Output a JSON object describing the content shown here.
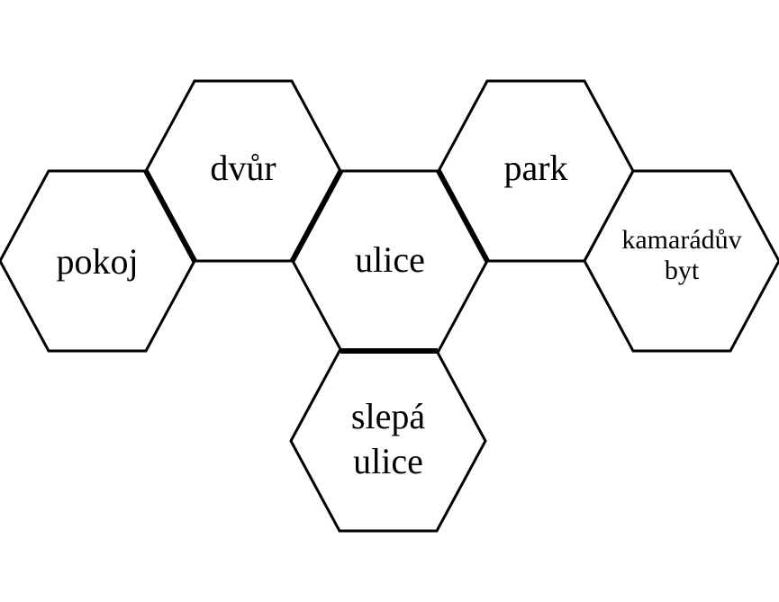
{
  "diagram": {
    "rooms": {
      "pokoj": {
        "lines": [
          "pokoj"
        ]
      },
      "dvur": {
        "lines": [
          "dvůr"
        ]
      },
      "ulice": {
        "lines": [
          "ulice"
        ]
      },
      "park": {
        "lines": [
          "park"
        ]
      },
      "kamaraduv_byt": {
        "lines": [
          "kamarádův",
          "byt"
        ]
      },
      "slepa_ulice": {
        "lines": [
          "slepá",
          "ulice"
        ]
      }
    },
    "connections": [
      [
        "pokoj",
        "dvur"
      ],
      [
        "dvur",
        "ulice"
      ],
      [
        "ulice",
        "park"
      ],
      [
        "ulice",
        "slepa_ulice"
      ]
    ],
    "colors": {
      "stroke": "#000000",
      "fill": "#ffffff",
      "text": "#000000"
    }
  }
}
